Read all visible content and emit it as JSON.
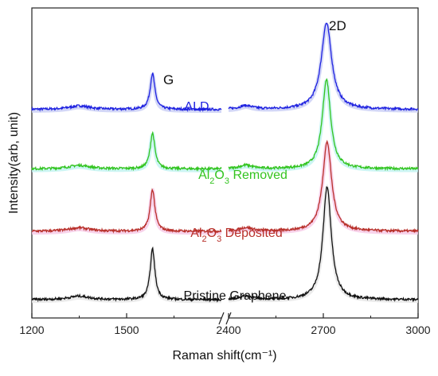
{
  "chart_data": {
    "type": "line",
    "xlabel": "Raman shift(cm⁻¹)",
    "ylabel": "Intensity(arb, unit)",
    "x_axis_break": [
      1800,
      2400
    ],
    "xlim_left": [
      1200,
      1800
    ],
    "xlim_right": [
      2400,
      3000
    ],
    "xticks_left": [
      "1200",
      "1500"
    ],
    "xticks_right": [
      "2400",
      "2700",
      "3000"
    ],
    "peak_labels": [
      {
        "text": "G",
        "x": 1580
      },
      {
        "text": "2D",
        "x": 2710
      }
    ],
    "series": [
      {
        "name": "ALD",
        "color": "#1f22e0",
        "shadow": "#c8cdf5",
        "label_parts": [
          {
            "t": "ALD"
          }
        ],
        "baseline": 0.68,
        "g_height": 0.12,
        "d_height": 0.29,
        "d_width": 20,
        "d_center": 2710
      },
      {
        "name": "Al2O3 Removed",
        "color": "#33c41f",
        "shadow": "#bff3f0",
        "label_parts": [
          {
            "t": "Al"
          },
          {
            "t": "2",
            "sub": true
          },
          {
            "t": "O"
          },
          {
            "t": "3",
            "sub": true
          },
          {
            "t": " Removed"
          }
        ],
        "baseline": 0.48,
        "g_height": 0.12,
        "d_height": 0.3,
        "d_width": 16,
        "d_center": 2710
      },
      {
        "name": "Al2O3 Deposited",
        "color": "#b8302a",
        "shadow": "#f6c8e6",
        "label_parts": [
          {
            "t": "Al"
          },
          {
            "t": "2",
            "sub": true
          },
          {
            "t": "O"
          },
          {
            "t": "3",
            "sub": true
          },
          {
            "t": " Deposited"
          }
        ],
        "baseline": 0.27,
        "g_height": 0.14,
        "d_height": 0.3,
        "d_width": 17,
        "d_center": 2712
      },
      {
        "name": "Pristine Graphene",
        "color": "#111111",
        "shadow": "#e6e6e6",
        "label_parts": [
          {
            "t": "Pristine Graphene"
          }
        ],
        "baseline": 0.04,
        "g_height": 0.17,
        "d_height": 0.38,
        "d_width": 16,
        "d_center": 2712
      }
    ]
  }
}
